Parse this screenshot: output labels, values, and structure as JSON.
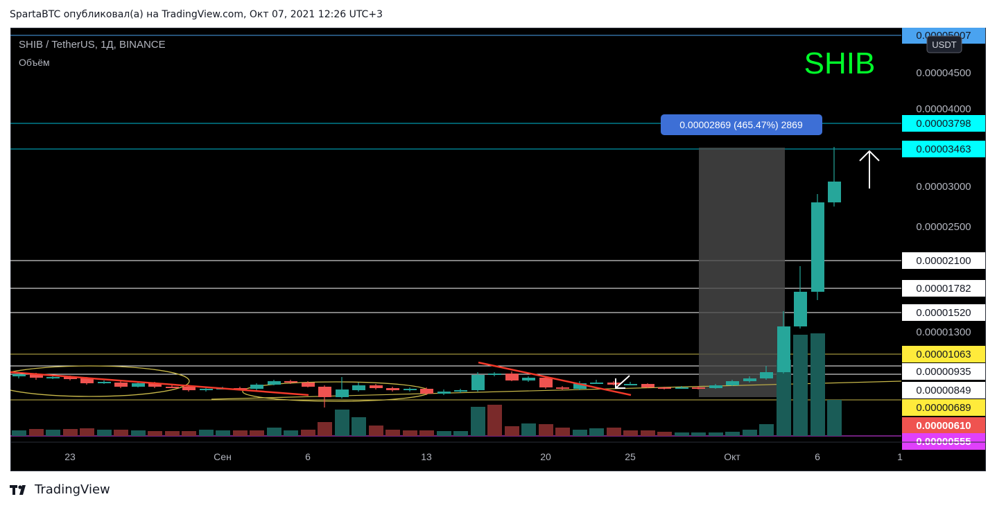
{
  "header": {
    "credit": "SpartaBTC опубликовал(а) на TradingView.com, Окт 07, 2021 12:26 UTC+3"
  },
  "chart": {
    "symbol_line": "SHIB / TetherUS, 1Д, BINANCE",
    "indicator_label": "Объём",
    "watermark": "SHIB",
    "currency_badge": "USDT",
    "measure_label": "0.00002869 (465.47%) 2869",
    "colors": {
      "up": "#26a69a",
      "down": "#ef5350",
      "volume_up": "#1a5c57",
      "volume_down": "#7a2a2a",
      "watermark": "#00ff2a",
      "measure_badge": "#3d6fd6"
    }
  },
  "price_axis": {
    "ticks": [
      "0.00004500",
      "0.00004000",
      "0.00003000",
      "0.00002500",
      "0.00001300"
    ],
    "badges": [
      {
        "label": "0.00005007",
        "bg": "#4aa3f0",
        "fg": "#131722"
      },
      {
        "label": "0.00003798",
        "bg": "#00ffff",
        "fg": "#131722"
      },
      {
        "label": "0.00003463",
        "bg": "#00ffff",
        "fg": "#131722"
      },
      {
        "label": "0.00002100",
        "bg": "#ffffff",
        "fg": "#131722"
      },
      {
        "label": "0.00001782",
        "bg": "#ffffff",
        "fg": "#131722"
      },
      {
        "label": "0.00001520",
        "bg": "#ffffff",
        "fg": "#131722"
      },
      {
        "label": "0.00001063",
        "bg": "#ffeb3b",
        "fg": "#131722"
      },
      {
        "label": "0.00000935",
        "bg": "#ffffff",
        "fg": "#131722"
      },
      {
        "label": "0.00000849",
        "bg": "#ffffff",
        "fg": "#131722"
      },
      {
        "label": "0.00000689",
        "bg": "#ffeb3b",
        "fg": "#131722"
      },
      {
        "label": "0.00000610",
        "bg": "#ef5350",
        "fg": "#ffffff"
      },
      {
        "label": "0.00000555",
        "bg": "#e040fb",
        "fg": "#ffffff"
      }
    ]
  },
  "time_axis": {
    "ticks": [
      "23",
      "Сен",
      "6",
      "13",
      "20",
      "25",
      "Окт",
      "6",
      "1"
    ]
  },
  "footer": {
    "brand": "TradingView"
  }
}
